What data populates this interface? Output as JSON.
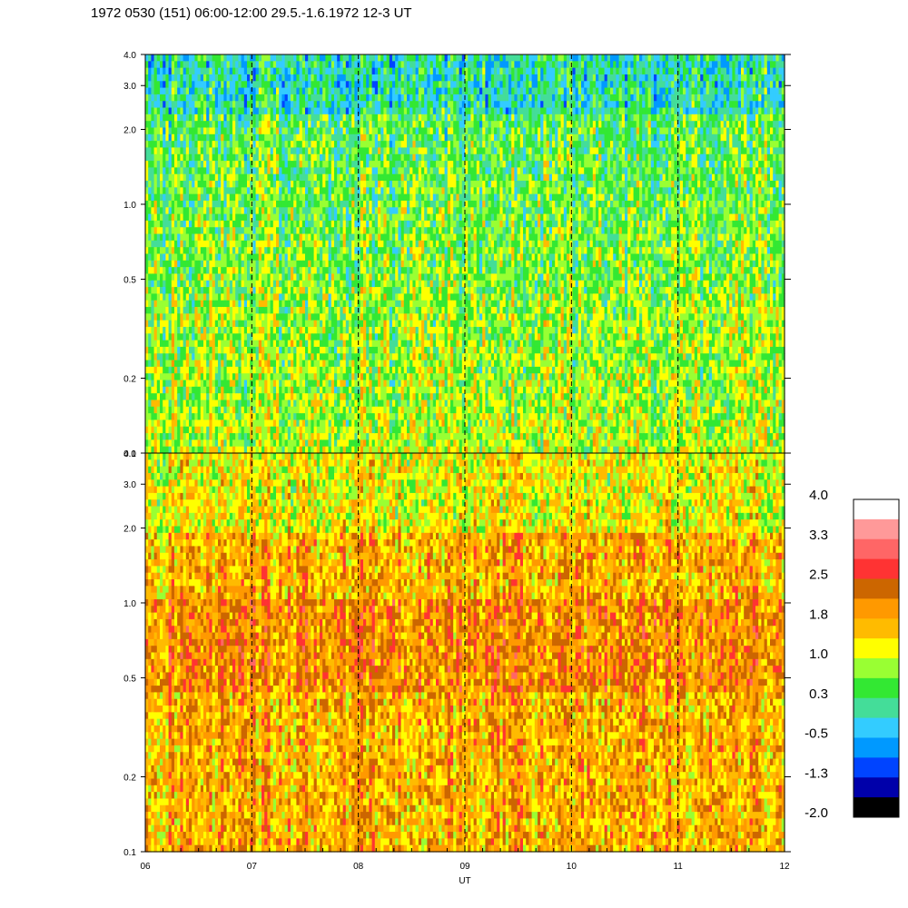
{
  "chart_data": {
    "type": "heatmap",
    "title": "1972 0530 (151) 06:00-12:00 29.5.-1.6.1972  12-3 UT",
    "xlabel": "UT",
    "x_ticks": [
      "06",
      "07",
      "08",
      "09",
      "10",
      "11",
      "12"
    ],
    "xlim": [
      6,
      12
    ],
    "panels": [
      {
        "name": "upper",
        "y_scale": "log",
        "ylim": [
          0.1,
          4.0
        ],
        "y_ticks": [
          "0.1",
          "0.2",
          "0.5",
          "1.0",
          "2.0",
          "3.0",
          "4.0"
        ],
        "dominant_range": [
          0.3,
          1.0
        ],
        "dashed_hour_lines": [
          7,
          8,
          9,
          10,
          11
        ]
      },
      {
        "name": "lower",
        "y_scale": "log",
        "ylim": [
          0.1,
          4.0
        ],
        "y_ticks": [
          "0.1",
          "0.2",
          "0.5",
          "1.0",
          "2.0",
          "3.0",
          "4.0"
        ],
        "dominant_range": [
          1.0,
          2.5
        ],
        "dashed_hour_lines": [
          7,
          8,
          9,
          10,
          11
        ]
      }
    ],
    "colorbar": {
      "tick_labels": [
        "4.0",
        "3.3",
        "2.5",
        "1.8",
        "1.0",
        "0.3",
        "-0.5",
        "-1.3",
        "-2.0"
      ],
      "colors_top_to_bottom": [
        "#ffffff",
        "#ff9999",
        "#ff6666",
        "#ff3333",
        "#cc6600",
        "#ff9900",
        "#ffbb00",
        "#ffff00",
        "#99ff33",
        "#33e833",
        "#44dd99",
        "#33ccff",
        "#0099ff",
        "#0044ff",
        "#0000aa",
        "#000000"
      ]
    }
  }
}
